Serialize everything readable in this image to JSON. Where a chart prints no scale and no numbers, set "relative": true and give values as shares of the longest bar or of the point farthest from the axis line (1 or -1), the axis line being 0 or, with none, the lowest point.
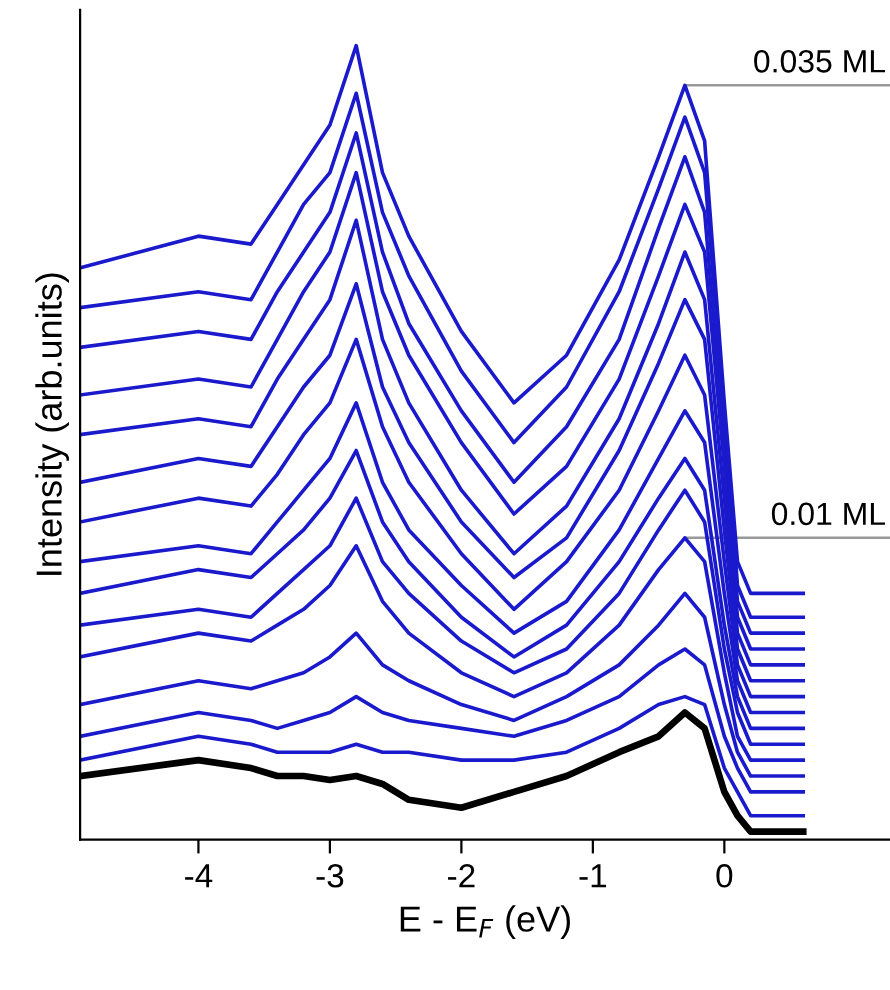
{
  "chart_data": {
    "type": "line",
    "relative": true,
    "xlabel": "E - E$_{F}$ (eV)",
    "ylabel": "Intensity (arb.units)",
    "x": [
      -4.9,
      -4.0,
      -3.6,
      -3.4,
      -3.2,
      -3.0,
      -2.8,
      -2.6,
      -2.4,
      -2.0,
      -1.6,
      -1.2,
      -0.8,
      -0.5,
      -0.3,
      -0.15,
      0.0,
      0.1,
      0.2,
      0.6
    ],
    "xlim": [
      -4.9,
      1.26
    ],
    "xticks": [
      -4,
      -3,
      -2,
      -1,
      0
    ],
    "tick_labels": "x",
    "grid": false,
    "legend": false,
    "marker": "none",
    "line_style": "solid",
    "series": [
      {
        "name": "0.035 ML",
        "color": "#1a1acc",
        "values": [
          0.72,
          0.76,
          0.75,
          0.8,
          0.85,
          0.9,
          1.0,
          0.84,
          0.76,
          0.64,
          0.55,
          0.61,
          0.73,
          0.86,
          0.95,
          0.88,
          0.55,
          0.35,
          0.31,
          0.31
        ]
      },
      {
        "color": "#1a1acc",
        "values": [
          0.67,
          0.69,
          0.68,
          0.74,
          0.8,
          0.84,
          0.94,
          0.79,
          0.71,
          0.59,
          0.5,
          0.57,
          0.69,
          0.82,
          0.91,
          0.84,
          0.54,
          0.32,
          0.28,
          0.28
        ]
      },
      {
        "color": "#1a1acc",
        "values": [
          0.62,
          0.64,
          0.63,
          0.69,
          0.74,
          0.79,
          0.89,
          0.74,
          0.65,
          0.54,
          0.45,
          0.52,
          0.63,
          0.77,
          0.86,
          0.79,
          0.5,
          0.3,
          0.26,
          0.26
        ]
      },
      {
        "color": "#1a1acc",
        "values": [
          0.56,
          0.58,
          0.57,
          0.63,
          0.69,
          0.74,
          0.84,
          0.69,
          0.61,
          0.5,
          0.41,
          0.47,
          0.58,
          0.71,
          0.8,
          0.74,
          0.47,
          0.28,
          0.24,
          0.24
        ]
      },
      {
        "color": "#1a1acc",
        "values": [
          0.51,
          0.53,
          0.52,
          0.58,
          0.63,
          0.68,
          0.78,
          0.63,
          0.55,
          0.44,
          0.36,
          0.42,
          0.53,
          0.65,
          0.74,
          0.68,
          0.43,
          0.26,
          0.22,
          0.22
        ]
      },
      {
        "color": "#1a1acc",
        "values": [
          0.45,
          0.48,
          0.47,
          0.52,
          0.57,
          0.61,
          0.7,
          0.57,
          0.5,
          0.4,
          0.33,
          0.38,
          0.49,
          0.6,
          0.68,
          0.63,
          0.39,
          0.24,
          0.2,
          0.2
        ]
      },
      {
        "color": "#1a1acc",
        "values": [
          0.4,
          0.43,
          0.42,
          0.46,
          0.51,
          0.55,
          0.63,
          0.52,
          0.45,
          0.36,
          0.29,
          0.35,
          0.44,
          0.54,
          0.61,
          0.56,
          0.35,
          0.22,
          0.18,
          0.18
        ]
      },
      {
        "color": "#1a1acc",
        "values": [
          0.35,
          0.37,
          0.36,
          0.4,
          0.44,
          0.48,
          0.55,
          0.45,
          0.39,
          0.32,
          0.26,
          0.3,
          0.39,
          0.48,
          0.54,
          0.5,
          0.31,
          0.2,
          0.16,
          0.16
        ]
      },
      {
        "color": "#1a1acc",
        "values": [
          0.31,
          0.34,
          0.33,
          0.36,
          0.39,
          0.43,
          0.49,
          0.4,
          0.35,
          0.28,
          0.23,
          0.27,
          0.35,
          0.43,
          0.48,
          0.44,
          0.27,
          0.18,
          0.14,
          0.14
        ]
      },
      {
        "color": "#1a1acc",
        "values": [
          0.27,
          0.29,
          0.28,
          0.31,
          0.34,
          0.37,
          0.43,
          0.35,
          0.31,
          0.25,
          0.21,
          0.24,
          0.31,
          0.39,
          0.44,
          0.4,
          0.24,
          0.16,
          0.12,
          0.12
        ]
      },
      {
        "name": "0.01 ML",
        "color": "#1a1acc",
        "values": [
          0.23,
          0.26,
          0.25,
          0.27,
          0.29,
          0.32,
          0.37,
          0.3,
          0.26,
          0.21,
          0.18,
          0.21,
          0.27,
          0.34,
          0.38,
          0.35,
          0.21,
          0.13,
          0.1,
          0.1
        ]
      },
      {
        "color": "#1a1acc",
        "values": [
          0.17,
          0.2,
          0.19,
          0.2,
          0.21,
          0.23,
          0.26,
          0.22,
          0.2,
          0.17,
          0.15,
          0.18,
          0.22,
          0.27,
          0.31,
          0.28,
          0.17,
          0.11,
          0.08,
          0.08
        ]
      },
      {
        "color": "#1a1acc",
        "values": [
          0.13,
          0.16,
          0.15,
          0.14,
          0.15,
          0.16,
          0.18,
          0.16,
          0.15,
          0.14,
          0.13,
          0.15,
          0.18,
          0.22,
          0.24,
          0.22,
          0.13,
          0.09,
          0.06,
          0.06
        ]
      },
      {
        "color": "#1a1acc",
        "values": [
          0.1,
          0.13,
          0.12,
          0.11,
          0.11,
          0.11,
          0.12,
          0.11,
          0.11,
          0.1,
          0.1,
          0.11,
          0.14,
          0.17,
          0.18,
          0.17,
          0.09,
          0.06,
          0.03,
          0.03
        ]
      },
      {
        "color": "#000000",
        "values": [
          0.08,
          0.1,
          0.09,
          0.08,
          0.08,
          0.075,
          0.08,
          0.07,
          0.05,
          0.04,
          0.06,
          0.08,
          0.11,
          0.13,
          0.16,
          0.14,
          0.06,
          0.03,
          0.01,
          0.01
        ]
      }
    ]
  }
}
